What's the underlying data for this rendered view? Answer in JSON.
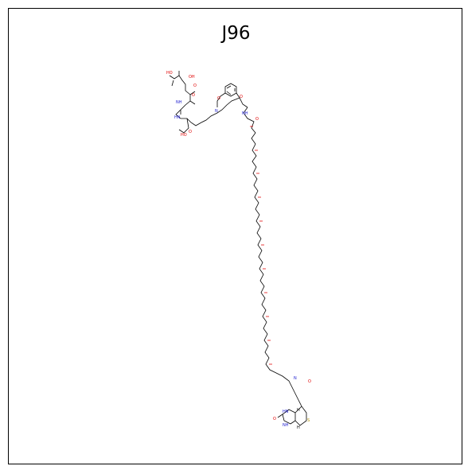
{
  "title": "J96",
  "labels": {
    "oh": "OH",
    "ho": "HO",
    "o": "O",
    "nh": "NH",
    "hn": "HN",
    "n": "N",
    "h": "H",
    "s": "S"
  },
  "colors": {
    "bond": "#000000",
    "oxygen": "#e00000",
    "nitrogen": "#2020d0",
    "sulfur": "#b09000"
  }
}
